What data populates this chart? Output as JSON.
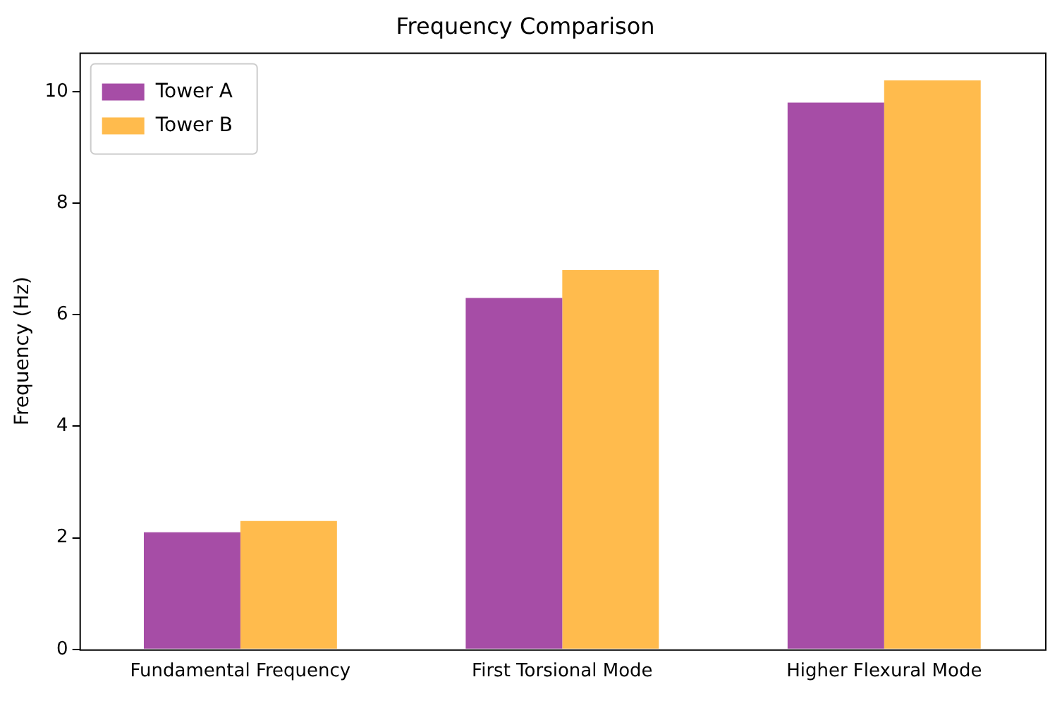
{
  "chart_data": {
    "type": "bar",
    "title": "Frequency Comparison",
    "ylabel": "Frequency (Hz)",
    "categories": [
      "Fundamental Frequency",
      "First Torsional Mode",
      "Higher Flexural Mode"
    ],
    "series": [
      {
        "name": "Tower A",
        "color": "#a64da6",
        "values": [
          2.1,
          6.3,
          9.8
        ]
      },
      {
        "name": "Tower B",
        "color": "#ffbb4d",
        "values": [
          2.3,
          6.8,
          10.2
        ]
      }
    ],
    "ylim": [
      0,
      10.7
    ],
    "yticks": [
      0,
      2,
      4,
      6,
      8,
      10
    ],
    "grid": false,
    "legend": "top left"
  }
}
